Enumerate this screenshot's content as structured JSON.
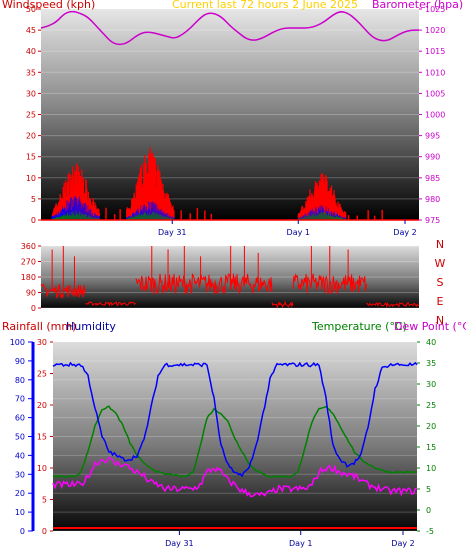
{
  "header": {
    "left": "Windspeed (kph)",
    "center": "Current last 72 hours 2 June 2025",
    "right": "Barometer (hpa)"
  },
  "colors": {
    "wind": "#ff0000",
    "gust": "#0000ff",
    "wind_low": "#008000",
    "baro": "#cc00cc",
    "dir": "#ff0000",
    "humidity": "#0000ff",
    "temperature": "#008000",
    "dewpoint": "#ff00ff",
    "rain": "#ff0000",
    "rain_axis": "#0000ff",
    "humidity_axis": "#ff0000"
  },
  "chart_data": [
    {
      "id": "wind_baro",
      "type": "line",
      "ylabel_left": "Windspeed (kph)",
      "ylabel_right": "Barometer (hpa)",
      "ylim_left": [
        0,
        50
      ],
      "yticks_left": [
        "0",
        "5",
        "10",
        "15",
        "20",
        "25",
        "30",
        "35",
        "40",
        "45",
        "50"
      ],
      "ylim_right": [
        975,
        1025
      ],
      "yticks_right": [
        "975",
        "980",
        "985",
        "990",
        "995",
        "1000",
        "1005",
        "1010",
        "1015",
        "1020",
        "1025"
      ],
      "xticks": [
        {
          "label": "Day 31",
          "h": 25
        },
        {
          "label": "Day 1",
          "h": 49
        },
        {
          "label": "Day 2",
          "h": 73
        }
      ],
      "xlim_hours": [
        0,
        72
      ],
      "series": [
        {
          "key": "barometer",
          "values": [
            1020.5,
            1021,
            1022,
            1024,
            1024.5,
            1024,
            1023,
            1021,
            1019,
            1017,
            1016.5,
            1017,
            1018.5,
            1019.5,
            1019.5,
            1019,
            1018.5,
            1018,
            1019,
            1020.5,
            1022.5,
            1024,
            1024,
            1023,
            1021,
            1019.5,
            1018,
            1017.5,
            1018,
            1019,
            1020,
            1020.5,
            1020.5,
            1020.5,
            1020.5,
            1021,
            1022,
            1023.5,
            1024.5,
            1024,
            1022.5,
            1020.5,
            1018.5,
            1017.5,
            1017.5,
            1018.5,
            1019.5,
            1020,
            1020
          ]
        },
        {
          "key": "wind_bursts",
          "values": [
            {
              "h": 6.5,
              "w": 12,
              "g": 5,
              "low": 2
            },
            {
              "h": 20.7,
              "w": 15,
              "g": 4,
              "low": 2
            },
            {
              "h": 53.4,
              "w": 10,
              "g": 3,
              "low": 2
            }
          ]
        }
      ]
    },
    {
      "id": "wind_direction",
      "type": "line",
      "ylim": [
        0,
        360
      ],
      "yticks": [
        "0",
        "90",
        "180",
        "270",
        "360"
      ],
      "right_labels": [
        "N",
        "W",
        "S",
        "E",
        "N"
      ],
      "xlim_hours": [
        0,
        72
      ],
      "segments": [
        {
          "h0": 0,
          "h1": 8.5,
          "base": 100,
          "noise": 40,
          "spikes": [
            340,
            360,
            300
          ]
        },
        {
          "h0": 8.5,
          "h1": 18,
          "base": 25,
          "noise": 10,
          "spikes": []
        },
        {
          "h0": 18,
          "h1": 33.5,
          "base": 140,
          "noise": 60,
          "spikes": [
            360,
            340,
            360,
            300
          ]
        },
        {
          "h0": 33.5,
          "h1": 44,
          "base": 140,
          "noise": 60,
          "spikes": [
            360,
            360,
            320
          ]
        },
        {
          "h0": 44,
          "h1": 48,
          "base": 20,
          "noise": 15,
          "spikes": []
        },
        {
          "h0": 48,
          "h1": 62,
          "base": 140,
          "noise": 60,
          "spikes": [
            360,
            360,
            340
          ]
        },
        {
          "h0": 62,
          "h1": 72,
          "base": 20,
          "noise": 10,
          "spikes": []
        }
      ]
    },
    {
      "id": "temp_hum_rain",
      "type": "line",
      "ylabel_rain": "Rainfall (mm)",
      "ylabel_hum": "Humidity",
      "ylabel_temp": "Temperature (°C)",
      "ylabel_dew": "Dew Point (°C)",
      "ylim_hum": [
        0,
        100
      ],
      "yticks_hum": [
        "0",
        "10",
        "20",
        "30",
        "40",
        "50",
        "60",
        "70",
        "80",
        "90",
        "100"
      ],
      "ylim_rain": [
        0,
        30
      ],
      "yticks_rain": [
        "0",
        "5",
        "10",
        "15",
        "20",
        "25",
        "30"
      ],
      "ylim_temp": [
        -5,
        40
      ],
      "yticks_temp": [
        "-5",
        "0",
        "5",
        "10",
        "15",
        "20",
        "25",
        "30",
        "35",
        "40"
      ],
      "xticks": [
        {
          "label": "Day 31",
          "h": 25
        },
        {
          "label": "Day 1",
          "h": 49
        },
        {
          "label": "Day 2",
          "h": 73
        }
      ],
      "xlim_hours": [
        0,
        72
      ],
      "series": [
        {
          "key": "humidity",
          "values": [
            88,
            88,
            88,
            88,
            88,
            82,
            65,
            50,
            42,
            40,
            38,
            38,
            40,
            48,
            65,
            82,
            88,
            88,
            88,
            88,
            88,
            88,
            88,
            70,
            45,
            35,
            30,
            30,
            33,
            45,
            62,
            80,
            88,
            88,
            88,
            88,
            88,
            88,
            88,
            70,
            45,
            38,
            35,
            36,
            40,
            55,
            75,
            86,
            88,
            88,
            88,
            88,
            88
          ]
        },
        {
          "key": "temperature",
          "values": [
            8,
            8,
            8,
            8,
            9,
            14,
            20,
            24,
            24.5,
            23,
            20,
            16,
            13,
            11,
            10,
            9,
            8.5,
            8.5,
            8,
            8,
            9,
            15,
            22,
            24,
            23,
            21,
            17,
            14,
            11,
            9.5,
            8.5,
            8,
            8,
            8,
            8,
            9,
            15,
            21,
            24,
            24.5,
            23,
            20,
            17,
            14,
            12,
            11,
            10,
            9.5,
            9,
            9,
            9,
            9,
            9
          ]
        },
        {
          "key": "dewpoint",
          "values": [
            6,
            6,
            6,
            6,
            6,
            8,
            11,
            12,
            12,
            11,
            11,
            10,
            9,
            8,
            6.5,
            6,
            5,
            5,
            5,
            5,
            5,
            6,
            9,
            10,
            9,
            7,
            6,
            4.5,
            4,
            3.5,
            3.5,
            4,
            5,
            5,
            5,
            5,
            5,
            6,
            9,
            10,
            10,
            9,
            8.5,
            8,
            7,
            6,
            5.5,
            5,
            4.5,
            4.5,
            4.5,
            4.5,
            4.5
          ]
        }
      ]
    }
  ]
}
